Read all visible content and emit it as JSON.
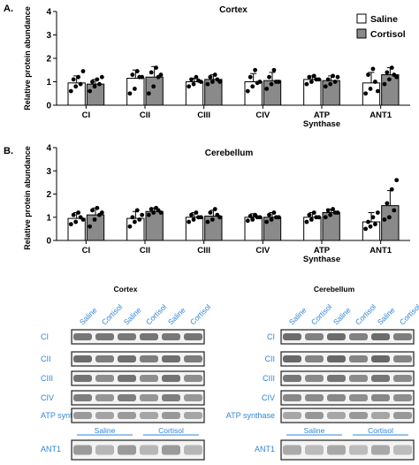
{
  "panel_labels": [
    "A.",
    "B."
  ],
  "legend": [
    {
      "label": "Saline",
      "color": "#ffffff"
    },
    {
      "label": "Cortisol",
      "color": "#8a8a8a"
    }
  ],
  "chart_data": [
    {
      "type": "bar",
      "title": "Cortex",
      "ylabel": "Relative protein abundance",
      "ylim": [
        0,
        4
      ],
      "yticks": [
        "0",
        "1",
        "2",
        "3",
        "4"
      ],
      "categories": [
        "CI",
        "CII",
        "CIII",
        "CIV",
        "ATP Synthase",
        "ANT1"
      ],
      "series": [
        {
          "name": "Saline",
          "color": "#ffffff",
          "values": [
            0.95,
            1.15,
            1.0,
            1.0,
            1.1,
            0.95
          ],
          "errors": [
            0.3,
            0.35,
            0.15,
            0.35,
            0.15,
            0.45
          ],
          "points": [
            [
              0.6,
              0.8,
              0.9,
              1.1,
              1.2,
              1.45
            ],
            [
              0.5,
              0.7,
              1.2,
              1.3,
              1.45,
              1.2
            ],
            [
              0.8,
              0.9,
              1.05,
              1.1,
              1.2,
              1.0
            ],
            [
              0.6,
              0.8,
              0.95,
              1.2,
              1.5,
              1.0
            ],
            [
              0.9,
              1.0,
              1.1,
              1.2,
              1.25,
              1.1
            ],
            [
              0.5,
              0.7,
              1.0,
              1.3,
              1.55,
              0.6
            ]
          ]
        },
        {
          "name": "Cortisol",
          "color": "#8a8a8a",
          "values": [
            0.9,
            1.2,
            1.1,
            1.05,
            1.05,
            1.3
          ],
          "errors": [
            0.2,
            0.45,
            0.2,
            0.35,
            0.2,
            0.3
          ],
          "points": [
            [
              0.6,
              0.8,
              0.9,
              1.0,
              1.1,
              1.2
            ],
            [
              0.5,
              0.8,
              1.2,
              1.4,
              1.6,
              1.3
            ],
            [
              0.9,
              1.0,
              1.1,
              1.2,
              1.3,
              1.0
            ],
            [
              0.7,
              0.9,
              1.0,
              1.2,
              1.5,
              1.0
            ],
            [
              0.8,
              0.9,
              1.0,
              1.1,
              1.25,
              1.2
            ],
            [
              0.9,
              1.1,
              1.3,
              1.4,
              1.6,
              1.2
            ]
          ]
        }
      ]
    },
    {
      "type": "bar",
      "title": "Cerebellum",
      "ylabel": "Relative protein abundance",
      "ylim": [
        0,
        4
      ],
      "yticks": [
        "0",
        "1",
        "2",
        "3",
        "4"
      ],
      "categories": [
        "CI",
        "CII",
        "CIII",
        "CIV",
        "ATP Synthase",
        "ANT1"
      ],
      "series": [
        {
          "name": "Saline",
          "color": "#ffffff",
          "values": [
            0.95,
            0.95,
            1.0,
            1.0,
            1.0,
            0.8
          ],
          "errors": [
            0.25,
            0.3,
            0.2,
            0.15,
            0.2,
            0.4
          ],
          "points": [
            [
              0.7,
              0.8,
              1.0,
              1.1,
              1.2,
              0.9
            ],
            [
              0.6,
              0.8,
              0.9,
              1.0,
              1.3,
              1.1
            ],
            [
              0.8,
              0.9,
              1.0,
              1.1,
              1.2,
              1.0
            ],
            [
              0.85,
              0.9,
              1.0,
              1.05,
              1.1,
              1.0
            ],
            [
              0.8,
              0.9,
              1.0,
              1.1,
              1.2,
              1.0
            ],
            [
              0.5,
              0.6,
              0.7,
              0.8,
              1.0,
              1.2
            ]
          ]
        },
        {
          "name": "Cortisol",
          "color": "#8a8a8a",
          "values": [
            1.1,
            1.25,
            1.05,
            1.0,
            1.2,
            1.5
          ],
          "errors": [
            0.3,
            0.15,
            0.25,
            0.2,
            0.15,
            0.65
          ],
          "points": [
            [
              0.6,
              0.9,
              1.1,
              1.3,
              1.4,
              1.2
            ],
            [
              1.1,
              1.2,
              1.3,
              1.35,
              1.4,
              1.2
            ],
            [
              0.8,
              0.9,
              1.1,
              1.2,
              1.35,
              1.0
            ],
            [
              0.8,
              0.9,
              1.0,
              1.1,
              1.2,
              1.0
            ],
            [
              1.0,
              1.1,
              1.2,
              1.3,
              1.35,
              1.2
            ],
            [
              0.9,
              1.0,
              1.3,
              1.6,
              2.2,
              2.6
            ]
          ]
        }
      ]
    }
  ],
  "blots": {
    "cortex_title": "Cortex",
    "cerebellum_title": "Cerebellum",
    "lane_labels": [
      "Saline",
      "Cortisol",
      "Saline",
      "Cortisol",
      "Saline",
      "Cortisol"
    ],
    "row_labels": [
      "CI",
      "CII",
      "CIII",
      "CIV",
      "ATP synthase"
    ],
    "ant1_label": "ANT1",
    "ant1_groups": [
      "Saline",
      "Cortisol"
    ],
    "label_color": "#2f86d6"
  }
}
